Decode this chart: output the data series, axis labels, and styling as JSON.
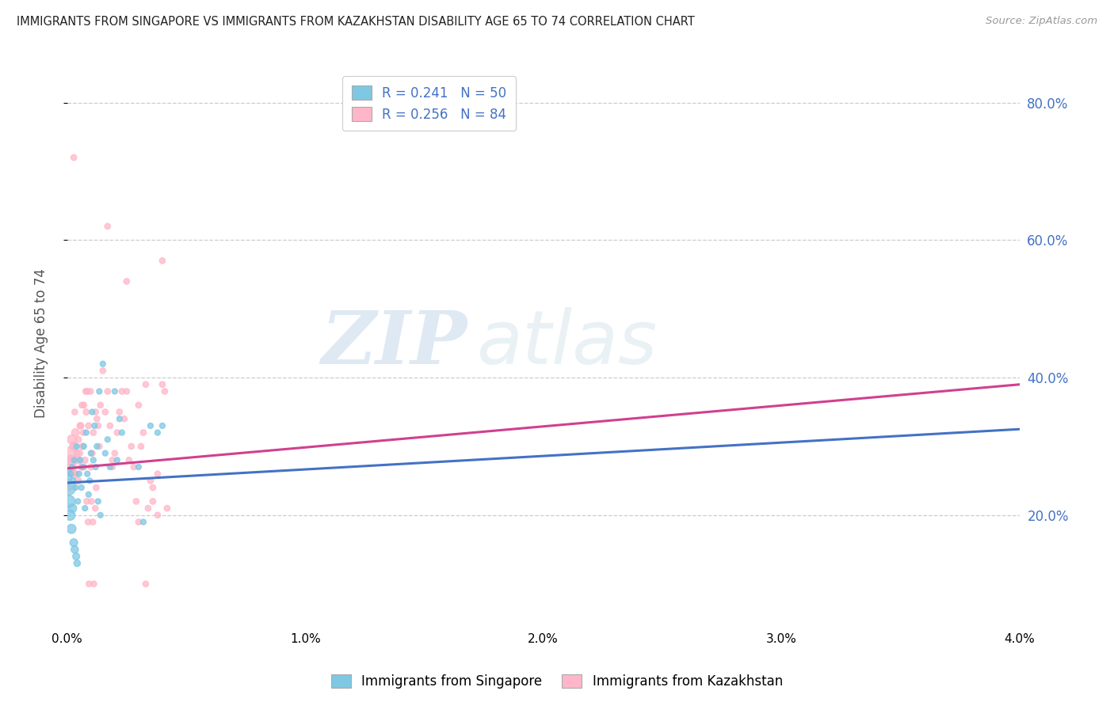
{
  "title": "IMMIGRANTS FROM SINGAPORE VS IMMIGRANTS FROM KAZAKHSTAN DISABILITY AGE 65 TO 74 CORRELATION CHART",
  "source": "Source: ZipAtlas.com",
  "ylabel": "Disability Age 65 to 74",
  "xlim": [
    0.0,
    0.04
  ],
  "ylim": [
    0.04,
    0.86
  ],
  "xticks": [
    0.0,
    0.01,
    0.02,
    0.03,
    0.04
  ],
  "xtick_labels": [
    "0.0%",
    "1.0%",
    "2.0%",
    "3.0%",
    "4.0%"
  ],
  "yticks": [
    0.2,
    0.4,
    0.6,
    0.8
  ],
  "ytick_labels": [
    "20.0%",
    "40.0%",
    "60.0%",
    "80.0%"
  ],
  "watermark_zip": "ZIP",
  "watermark_atlas": "atlas",
  "legend_label_blue": "R = 0.241   N = 50",
  "legend_label_pink": "R = 0.256   N = 84",
  "color_blue": "#7ec8e3",
  "color_pink": "#ffb6c8",
  "line_color_blue": "#4472c4",
  "line_color_pink": "#d04090",
  "singapore_x": [
    5e-05,
    0.0001,
    0.00015,
    0.0002,
    0.00025,
    0.0003,
    0.00035,
    0.0004,
    0.00045,
    0.0005,
    0.00055,
    0.0006,
    0.00065,
    0.0007,
    0.00075,
    0.0008,
    0.00085,
    0.0009,
    0.00095,
    0.001,
    0.00105,
    0.0011,
    0.00115,
    0.0012,
    0.00125,
    0.0013,
    0.00135,
    0.0014,
    0.0015,
    0.0016,
    0.0017,
    0.0018,
    0.002,
    0.0021,
    0.0022,
    0.0023,
    0.003,
    0.0032,
    0.0035,
    0.0038,
    0.004,
    3e-05,
    8e-05,
    0.00012,
    0.00018,
    0.00022,
    0.00028,
    0.00032,
    0.00038,
    0.00042
  ],
  "singapore_y": [
    0.265,
    0.255,
    0.26,
    0.27,
    0.25,
    0.28,
    0.24,
    0.3,
    0.22,
    0.26,
    0.28,
    0.24,
    0.27,
    0.3,
    0.21,
    0.32,
    0.26,
    0.23,
    0.25,
    0.29,
    0.35,
    0.28,
    0.33,
    0.27,
    0.3,
    0.22,
    0.38,
    0.2,
    0.42,
    0.29,
    0.31,
    0.27,
    0.38,
    0.28,
    0.34,
    0.32,
    0.27,
    0.19,
    0.33,
    0.32,
    0.33,
    0.24,
    0.22,
    0.2,
    0.18,
    0.21,
    0.16,
    0.15,
    0.14,
    0.13
  ],
  "singapore_sizes": [
    30,
    25,
    25,
    25,
    25,
    25,
    25,
    25,
    25,
    25,
    25,
    25,
    25,
    25,
    25,
    25,
    25,
    25,
    25,
    25,
    25,
    25,
    25,
    25,
    25,
    25,
    25,
    25,
    25,
    25,
    25,
    25,
    25,
    25,
    25,
    25,
    25,
    25,
    25,
    25,
    25,
    200,
    120,
    90,
    70,
    60,
    50,
    45,
    40,
    35
  ],
  "kazakhstan_x": [
    5e-05,
    0.0001,
    0.00015,
    0.0002,
    0.00025,
    0.0003,
    0.00035,
    0.0004,
    0.00045,
    0.0005,
    0.00055,
    0.0006,
    0.00065,
    0.0007,
    0.00075,
    0.0008,
    0.00085,
    0.0009,
    0.001,
    0.00105,
    0.0011,
    0.0012,
    0.00125,
    0.0013,
    0.00135,
    0.0014,
    0.0015,
    0.0016,
    0.0017,
    0.0018,
    0.0019,
    0.002,
    0.0021,
    0.0022,
    0.0023,
    0.0024,
    0.0025,
    0.0026,
    0.003,
    0.0031,
    0.0032,
    0.0033,
    0.0035,
    0.0036,
    0.0038,
    0.004,
    0.0041,
    0.0017,
    0.0025,
    0.0028,
    0.0019,
    0.0027,
    0.0029,
    0.003,
    0.0033,
    0.0034,
    0.0036,
    0.0038,
    0.004,
    0.0042,
    8e-05,
    0.00012,
    0.00018,
    0.00022,
    0.00028,
    0.00032,
    0.00038,
    0.00042,
    0.00048,
    0.00052,
    0.00058,
    0.00062,
    0.00068,
    0.00072,
    0.00078,
    0.00082,
    0.00088,
    0.00092,
    0.00098,
    0.00102,
    0.00108,
    0.00112,
    0.00118,
    0.00122
  ],
  "kazakhstan_y": [
    0.27,
    0.29,
    0.28,
    0.31,
    0.26,
    0.3,
    0.32,
    0.28,
    0.25,
    0.29,
    0.33,
    0.27,
    0.3,
    0.36,
    0.28,
    0.35,
    0.38,
    0.33,
    0.27,
    0.29,
    0.32,
    0.35,
    0.34,
    0.33,
    0.3,
    0.36,
    0.41,
    0.35,
    0.38,
    0.33,
    0.27,
    0.29,
    0.32,
    0.35,
    0.38,
    0.34,
    0.54,
    0.28,
    0.36,
    0.3,
    0.32,
    0.39,
    0.25,
    0.22,
    0.2,
    0.39,
    0.38,
    0.62,
    0.38,
    0.27,
    0.28,
    0.3,
    0.22,
    0.19,
    0.1,
    0.21,
    0.24,
    0.26,
    0.57,
    0.21,
    0.24,
    0.28,
    0.26,
    0.3,
    0.72,
    0.35,
    0.26,
    0.29,
    0.31,
    0.28,
    0.33,
    0.36,
    0.32,
    0.27,
    0.38,
    0.22,
    0.19,
    0.1,
    0.38,
    0.22,
    0.19,
    0.1,
    0.21,
    0.24
  ],
  "kazakhstan_sizes": [
    200,
    120,
    90,
    70,
    60,
    55,
    50,
    45,
    40,
    40,
    35,
    35,
    35,
    30,
    30,
    30,
    30,
    30,
    30,
    30,
    30,
    28,
    28,
    28,
    28,
    28,
    28,
    28,
    28,
    28,
    28,
    28,
    28,
    28,
    28,
    28,
    28,
    28,
    28,
    28,
    28,
    28,
    28,
    28,
    28,
    28,
    28,
    28,
    28,
    28,
    28,
    28,
    28,
    28,
    28,
    28,
    28,
    28,
    28,
    28,
    28,
    28,
    28,
    28,
    28,
    28,
    28,
    28,
    28,
    28,
    28,
    28,
    28,
    28,
    28,
    28,
    28,
    28,
    28,
    28,
    28,
    28,
    28,
    28
  ],
  "blue_trend_x": [
    0.0,
    0.04
  ],
  "blue_trend_y": [
    0.247,
    0.325
  ],
  "pink_trend_x": [
    0.0,
    0.04
  ],
  "pink_trend_y": [
    0.268,
    0.39
  ],
  "legend_labels_bottom": [
    "Immigrants from Singapore",
    "Immigrants from Kazakhstan"
  ],
  "background_color": "#ffffff",
  "grid_color": "#cccccc",
  "axis_label_color": "#555555",
  "right_tick_color": "#4472c4"
}
